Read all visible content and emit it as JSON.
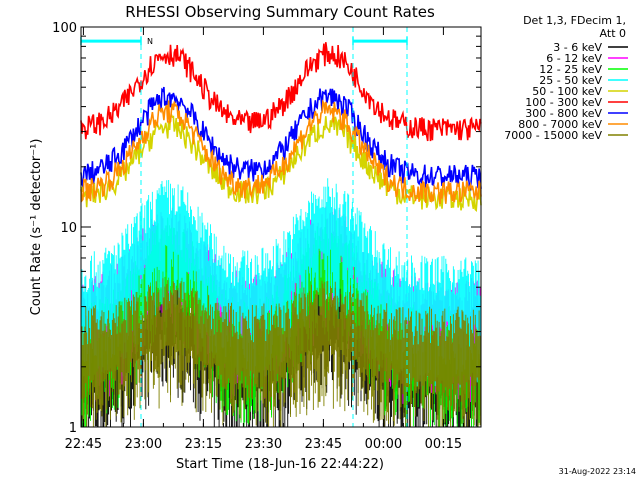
{
  "chart_data": {
    "type": "line",
    "title": "RHESSI Observing Summary Count Rates",
    "xlabel": "Start Time (18-Jun-16 22:44:22)",
    "ylabel": "Count Rate (s⁻¹ detector⁻¹)",
    "yscale": "log",
    "ylim": [
      1,
      100
    ],
    "xlim_minutes": [
      0,
      100
    ],
    "x_ticks": [
      "22:45",
      "23:00",
      "23:15",
      "23:30",
      "23:45",
      "00:00",
      "00:15"
    ],
    "x_tick_minutes": [
      0.6,
      15.6,
      30.6,
      45.6,
      60.6,
      75.6,
      90.6
    ],
    "y_ticks": [
      "1",
      "10",
      "100"
    ],
    "y_tick_values": [
      1,
      10,
      100
    ],
    "legend_header": [
      "Det 1,3, FDecim 1,",
      "Att 0"
    ],
    "legend_position": "right",
    "series": [
      {
        "name": "3 - 6 keV",
        "color": "#000000",
        "baseline": 2,
        "peak": 4,
        "style": "low"
      },
      {
        "name": "6 - 12 keV",
        "color": "#ff00ff",
        "baseline": 3.5,
        "peak": 8,
        "style": "low"
      },
      {
        "name": "12 - 25 keV",
        "color": "#00ff00",
        "baseline": 2.5,
        "peak": 7,
        "style": "low"
      },
      {
        "name": "25 - 50 keV",
        "color": "#00ffff",
        "baseline": 4.5,
        "peak": 11,
        "style": "low"
      },
      {
        "name": "50 - 100 keV",
        "color": "#d4d400",
        "baseline": 14,
        "peak": 32,
        "style": "band"
      },
      {
        "name": "100 - 300 keV",
        "color": "#ff0000",
        "baseline": 31,
        "peak": 74,
        "style": "band"
      },
      {
        "name": "300 - 800 keV",
        "color": "#0000ff",
        "baseline": 18,
        "peak": 45,
        "style": "band"
      },
      {
        "name": "800 - 7000 keV",
        "color": "#ff8c00",
        "baseline": 15,
        "peak": 38,
        "style": "band"
      },
      {
        "name": "7000 - 15000 keV",
        "color": "#808000",
        "baseline": 2.5,
        "peak": 3.5,
        "style": "low"
      }
    ],
    "peak_centers_minutes": [
      22,
      62
    ],
    "peak_width_minutes": 11,
    "flag_bar": {
      "label": "N",
      "color": "#00ffff",
      "segments_minutes": [
        [
          0,
          15
        ],
        [
          68,
          81.5
        ]
      ],
      "level": 85
    },
    "dashed_markers_minutes": [
      15,
      68,
      81.5
    ],
    "timestamp": "31-Aug-2022 23:14"
  }
}
